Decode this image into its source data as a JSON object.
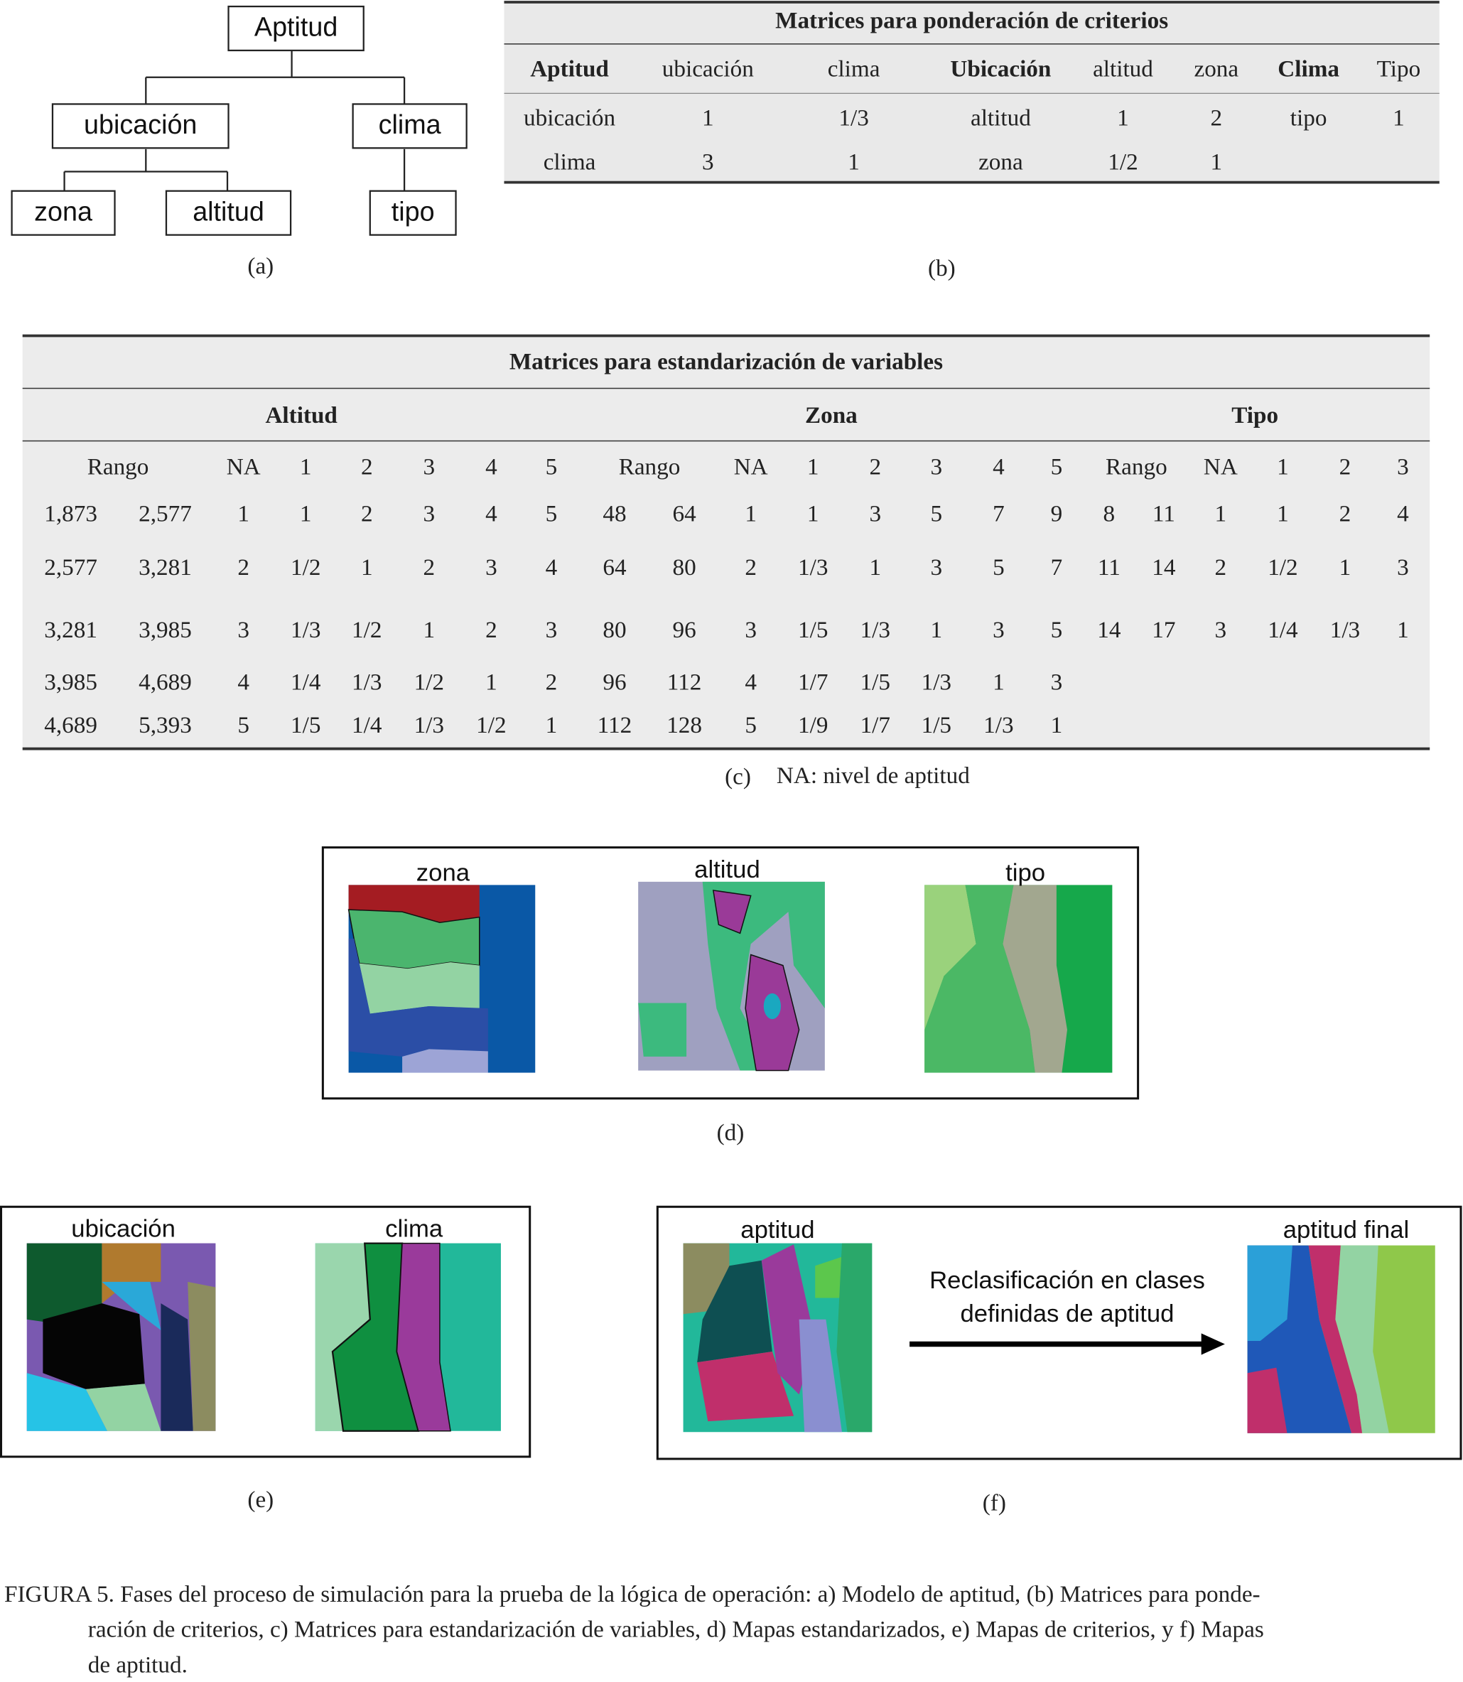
{
  "tree": {
    "nodes": [
      "Aptitud",
      "ubicación",
      "clima",
      "zona",
      "altitud",
      "tipo"
    ],
    "label": "(a)"
  },
  "weights": {
    "title": "Matrices para ponderación de criterios",
    "header": [
      "Aptitud",
      "ubicación",
      "clima",
      "Ubicación",
      "altitud",
      "zona",
      "Clima",
      "Tipo"
    ],
    "rows": [
      [
        "ubicación",
        "1",
        "1/3",
        "altitud",
        "1",
        "2",
        "tipo",
        "1"
      ],
      [
        "clima",
        "3",
        "1",
        "zona",
        "1/2",
        "1"
      ]
    ],
    "label": "(b)"
  },
  "standard": {
    "title": "Matrices para estandarización de variables",
    "groups": [
      "Altitud",
      "Zona",
      "Tipo"
    ],
    "subheader": [
      "Rango",
      "NA",
      "1",
      "2",
      "3",
      "4",
      "5",
      "Rango",
      "NA",
      "1",
      "2",
      "3",
      "4",
      "5",
      "Rango",
      "NA",
      "1",
      "2",
      "3"
    ],
    "rows": [
      [
        "1,873",
        "2,577",
        "1",
        "1",
        "2",
        "3",
        "4",
        "5",
        "48",
        "64",
        "1",
        "1",
        "3",
        "5",
        "7",
        "9",
        "8",
        "11",
        "1",
        "1",
        "2",
        "4"
      ],
      [
        "2,577",
        "3,281",
        "2",
        "1/2",
        "1",
        "2",
        "3",
        "4",
        "64",
        "80",
        "2",
        "1/3",
        "1",
        "3",
        "5",
        "7",
        "11",
        "14",
        "2",
        "1/2",
        "1",
        "3"
      ],
      [
        "3,281",
        "3,985",
        "3",
        "1/3",
        "1/2",
        "1",
        "2",
        "3",
        "80",
        "96",
        "3",
        "1/5",
        "1/3",
        "1",
        "3",
        "5",
        "14",
        "17",
        "3",
        "1/4",
        "1/3",
        "1"
      ],
      [
        "3,985",
        "4,689",
        "4",
        "1/4",
        "1/3",
        "1/2",
        "1",
        "2",
        "96",
        "112",
        "4",
        "1/7",
        "1/5",
        "1/3",
        "1",
        "3"
      ],
      [
        "4,689",
        "5,393",
        "5",
        "1/5",
        "1/4",
        "1/3",
        "1/2",
        "1",
        "112",
        "128",
        "5",
        "1/9",
        "1/7",
        "1/5",
        "1/3",
        "1"
      ]
    ],
    "label": "(c)",
    "note": "NA: nivel de aptitud"
  },
  "standardized_maps": {
    "titles": [
      "zona",
      "altitud",
      "tipo"
    ],
    "label": "(d)"
  },
  "criteria_maps": {
    "titles": [
      "ubicación",
      "clima"
    ],
    "label": "(e)"
  },
  "suitability_maps": {
    "titles": [
      "aptitud",
      "aptitud final"
    ],
    "arrow_text": [
      "Reclasificación en clases",
      "definidas de aptitud"
    ],
    "label": "(f)"
  },
  "caption": [
    "FIGURA 5. Fases del proceso de simulación para la prueba de la lógica de operación: a) Modelo de aptitud, (b) Matrices para ponde-",
    "ración de criterios, c) Matrices para estandarización de variables, d) Mapas estandarizados, e) Mapas de criterios, y f) Mapas",
    "de aptitud."
  ]
}
